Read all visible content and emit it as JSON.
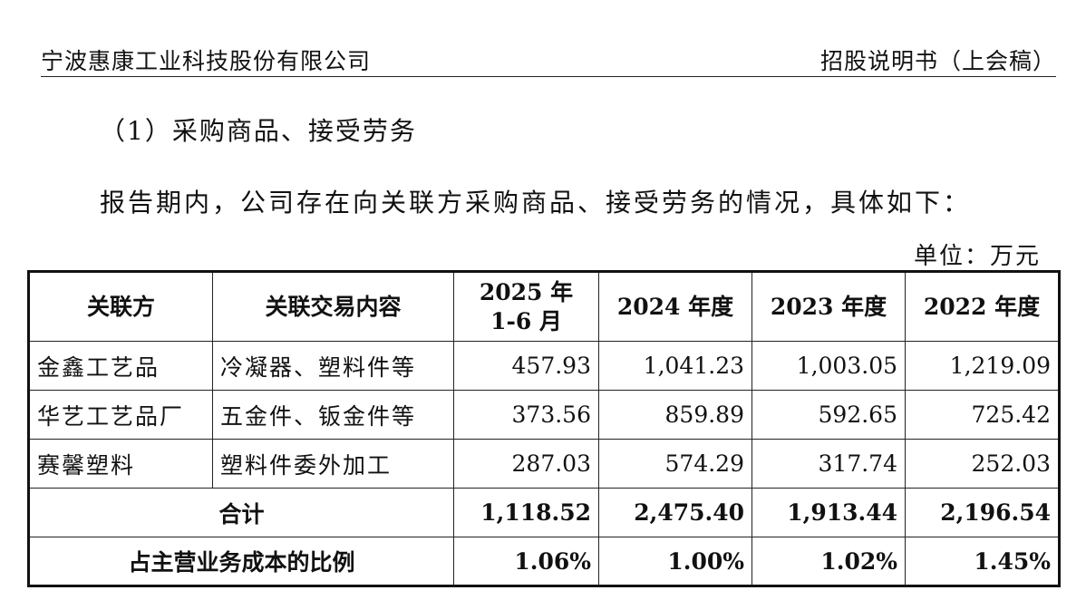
{
  "header": {
    "company": "宁波惠康工业科技股份有限公司",
    "document": "招股说明书（上会稿）"
  },
  "section_title": "（1）采购商品、接受劳务",
  "intro": "报告期内，公司存在向关联方采购商品、接受劳务的情况，具体如下：",
  "unit": "单位：万元",
  "table": {
    "headers": {
      "party": "关联方",
      "content": "关联交易内容",
      "p2025_line1": "2025 年",
      "p2025_line2": "1-6 月",
      "y2024": "2024 年度",
      "y2023": "2023 年度",
      "y2022": "2022 年度"
    },
    "rows": [
      {
        "party": "金鑫工艺品",
        "content": "冷凝器、塑料件等",
        "v2025": "457.93",
        "v2024": "1,041.23",
        "v2023": "1,003.05",
        "v2022": "1,219.09"
      },
      {
        "party": "华艺工艺品厂",
        "content": "五金件、钣金件等",
        "v2025": "373.56",
        "v2024": "859.89",
        "v2023": "592.65",
        "v2022": "725.42"
      },
      {
        "party": "赛馨塑料",
        "content": "塑料件委外加工",
        "v2025": "287.03",
        "v2024": "574.29",
        "v2023": "317.74",
        "v2022": "252.03"
      }
    ],
    "total": {
      "label": "合计",
      "v2025": "1,118.52",
      "v2024": "2,475.40",
      "v2023": "1,913.44",
      "v2022": "2,196.54"
    },
    "ratio": {
      "label": "占主营业务成本的比例",
      "v2025": "1.06%",
      "v2024": "1.00%",
      "v2023": "1.02%",
      "v2022": "1.45%"
    }
  }
}
